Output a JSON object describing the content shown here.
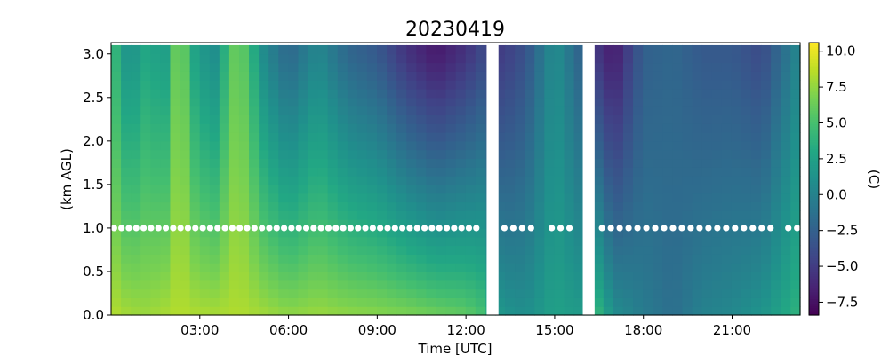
{
  "chart_data": {
    "type": "heatmap",
    "title": "20230419",
    "xlabel": "Time [UTC]",
    "ylabel": "(km AGL)",
    "colorbar_label": "(C)",
    "x_ticks": [
      {
        "value": 3,
        "label": "03:00"
      },
      {
        "value": 6,
        "label": "06:00"
      },
      {
        "value": 9,
        "label": "09:00"
      },
      {
        "value": 12,
        "label": "12:00"
      },
      {
        "value": 15,
        "label": "15:00"
      },
      {
        "value": 18,
        "label": "18:00"
      },
      {
        "value": 21,
        "label": "21:00"
      }
    ],
    "y_ticks": [
      {
        "value": 0.0,
        "label": "0.0"
      },
      {
        "value": 0.5,
        "label": "0.5"
      },
      {
        "value": 1.0,
        "label": "1.0"
      },
      {
        "value": 1.5,
        "label": "1.5"
      },
      {
        "value": 2.0,
        "label": "2.0"
      },
      {
        "value": 2.5,
        "label": "2.5"
      },
      {
        "value": 3.0,
        "label": "3.0"
      }
    ],
    "colorbar_ticks": [
      {
        "value": 10.0,
        "label": "10.0"
      },
      {
        "value": 7.5,
        "label": "7.5"
      },
      {
        "value": 5.0,
        "label": "5.0"
      },
      {
        "value": 2.5,
        "label": "2.5"
      },
      {
        "value": 0.0,
        "label": "0.0"
      },
      {
        "value": -2.5,
        "label": "−2.5"
      },
      {
        "value": -5.0,
        "label": "−5.0"
      },
      {
        "value": -7.5,
        "label": "−7.5"
      }
    ],
    "colormap": "viridis",
    "xlim": [
      0.0,
      23.3
    ],
    "ylim": [
      0.0,
      3.13
    ],
    "clim": [
      -8.4,
      10.6
    ],
    "time_step_hours": 0.333,
    "height_levels_km": [
      0.0,
      0.1,
      0.2,
      0.3,
      0.4,
      0.5,
      0.6,
      0.7,
      0.8,
      0.9,
      1.0,
      1.1,
      1.2,
      1.3,
      1.4,
      1.5,
      1.6,
      1.7,
      1.8,
      1.9,
      2.0,
      2.1,
      2.2,
      2.3,
      2.4,
      2.5,
      2.6,
      2.7,
      2.8,
      2.9,
      3.0
    ],
    "data_gaps_hours": [
      [
        12.7,
        13.1
      ],
      [
        15.95,
        16.35
      ]
    ],
    "temperature_columns": [
      {
        "time": 0.0,
        "surface": 8.5,
        "top": 5.0
      },
      {
        "time": 0.6,
        "surface": 8.0,
        "top": 1.0
      },
      {
        "time": 1.2,
        "surface": 7.8,
        "top": 3.0
      },
      {
        "time": 1.8,
        "surface": 8.2,
        "top": 2.0
      },
      {
        "time": 2.3,
        "surface": 8.5,
        "top": 7.5
      },
      {
        "time": 2.9,
        "surface": 8.3,
        "top": 2.0
      },
      {
        "time": 3.5,
        "surface": 8.2,
        "top": 1.0
      },
      {
        "time": 4.3,
        "surface": 8.4,
        "top": 7.0
      },
      {
        "time": 5.2,
        "surface": 8.0,
        "top": 0.5
      },
      {
        "time": 6.0,
        "surface": 7.5,
        "top": -2.0
      },
      {
        "time": 7.0,
        "surface": 7.8,
        "top": 0.5
      },
      {
        "time": 8.0,
        "surface": 7.5,
        "top": -2.0
      },
      {
        "time": 9.0,
        "surface": 7.3,
        "top": -3.0
      },
      {
        "time": 10.0,
        "surface": 7.0,
        "top": -5.5
      },
      {
        "time": 11.0,
        "surface": 6.5,
        "top": -7.0
      },
      {
        "time": 12.0,
        "surface": 6.0,
        "top": -5.5
      },
      {
        "time": 12.6,
        "surface": 5.0,
        "top": -4.0
      },
      {
        "time": 13.2,
        "surface": 1.5,
        "top": -5.0
      },
      {
        "time": 14.0,
        "surface": 1.0,
        "top": -3.5
      },
      {
        "time": 15.0,
        "surface": 2.5,
        "top": 1.0
      },
      {
        "time": 15.8,
        "surface": 2.0,
        "top": -2.0
      },
      {
        "time": 16.5,
        "surface": 4.0,
        "top": -5.5
      },
      {
        "time": 17.0,
        "surface": 1.0,
        "top": -7.0
      },
      {
        "time": 18.0,
        "surface": -0.5,
        "top": -2.5
      },
      {
        "time": 19.0,
        "surface": -1.5,
        "top": -2.0
      },
      {
        "time": 20.0,
        "surface": 0.0,
        "top": -3.0
      },
      {
        "time": 21.0,
        "surface": 0.5,
        "top": -3.0
      },
      {
        "time": 22.0,
        "surface": 1.5,
        "top": -4.0
      },
      {
        "time": 23.3,
        "surface": 4.0,
        "top": 0.5
      }
    ],
    "marker_series": {
      "height_km": 1.0,
      "color": "#ffffff",
      "times": [
        0.1,
        0.35,
        0.6,
        0.85,
        1.1,
        1.35,
        1.6,
        1.85,
        2.1,
        2.35,
        2.6,
        2.85,
        3.1,
        3.35,
        3.6,
        3.85,
        4.1,
        4.35,
        4.6,
        4.85,
        5.1,
        5.35,
        5.6,
        5.85,
        6.1,
        6.35,
        6.6,
        6.85,
        7.1,
        7.35,
        7.6,
        7.85,
        8.1,
        8.35,
        8.6,
        8.85,
        9.1,
        9.35,
        9.6,
        9.85,
        10.1,
        10.35,
        10.6,
        10.85,
        11.1,
        11.35,
        11.6,
        11.85,
        12.1,
        12.35,
        13.3,
        13.6,
        13.9,
        14.2,
        14.9,
        15.2,
        15.5,
        16.6,
        16.9,
        17.2,
        17.5,
        17.8,
        18.1,
        18.4,
        18.7,
        19.0,
        19.3,
        19.6,
        19.9,
        20.2,
        20.5,
        20.8,
        21.1,
        21.4,
        21.7,
        22.0,
        22.3,
        22.9,
        23.2
      ]
    }
  }
}
